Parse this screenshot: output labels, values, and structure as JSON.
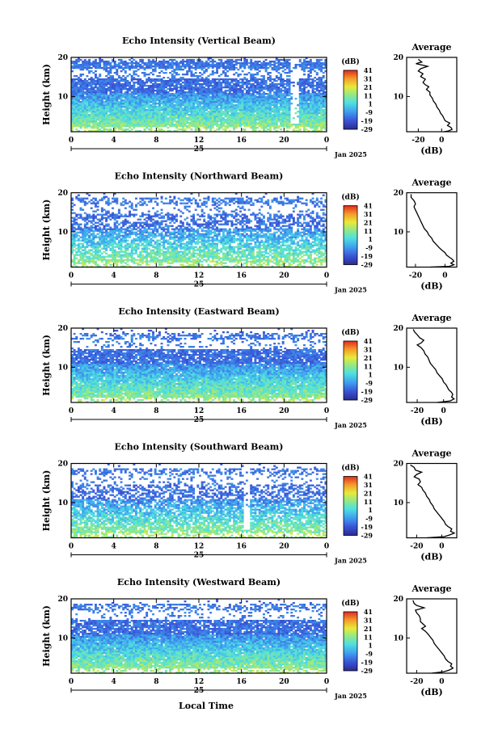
{
  "figure": {
    "x_axis_label": "Local Time",
    "date_label": "Jan 2025",
    "day_label": "25",
    "x_ticks": [
      "0",
      "4",
      "8",
      "12",
      "16",
      "20",
      "0"
    ],
    "y_ticks": [
      "20",
      "10"
    ],
    "y_label": "Height (km)",
    "colorbar": {
      "unit": "(dB)",
      "ticks": [
        "41",
        "31",
        "21",
        "11",
        "1",
        "-9",
        "-19",
        "-29"
      ]
    },
    "profile": {
      "title": "Average",
      "xlabel": "(dB)",
      "x_ticks": [
        "-20",
        "0"
      ],
      "y_ticks": [
        "20",
        "10"
      ]
    }
  },
  "panels": [
    {
      "title": "Echo Intensity (Vertical Beam)"
    },
    {
      "title": "Echo Intensity (Northward Beam)"
    },
    {
      "title": "Echo Intensity (Eastward Beam)"
    },
    {
      "title": "Echo Intensity (Southward Beam)"
    },
    {
      "title": "Echo Intensity (Westward Beam)"
    }
  ],
  "chart_data": [
    {
      "type": "heatmap",
      "title": "Echo Intensity (Vertical Beam)",
      "xlabel": "",
      "ylabel": "Height (km)",
      "x_range_hours": [
        0,
        24
      ],
      "y_range_km": [
        1,
        20
      ],
      "colorbar_range_db": [
        -29,
        41
      ],
      "profile": {
        "type": "line",
        "title": "Average",
        "xlabel": "(dB)",
        "ylabel": "",
        "xlim": [
          -30,
          13
        ],
        "ylim": [
          1,
          20
        ],
        "points": [
          [
            -20,
            19.5
          ],
          [
            -17,
            18.8
          ],
          [
            -22,
            18.4
          ],
          [
            -12,
            17.7
          ],
          [
            -18,
            17.1
          ],
          [
            -20,
            16.5
          ],
          [
            -16,
            15.8
          ],
          [
            -18,
            15.1
          ],
          [
            -14,
            14.4
          ],
          [
            -16,
            13.6
          ],
          [
            -14,
            13
          ],
          [
            -11,
            12.5
          ],
          [
            -13,
            11.8
          ],
          [
            -10,
            11.1
          ],
          [
            -10,
            10.4
          ],
          [
            -8,
            9.6
          ],
          [
            -7,
            8.8
          ],
          [
            -5,
            8.1
          ],
          [
            -4,
            7.3
          ],
          [
            -2,
            6.5
          ],
          [
            -1,
            5.8
          ],
          [
            1,
            5
          ],
          [
            2,
            4.4
          ],
          [
            3,
            3.8
          ],
          [
            7,
            3.2
          ],
          [
            5,
            2.6
          ],
          [
            8,
            2.1
          ],
          [
            9,
            1.6
          ],
          [
            6,
            1.2
          ],
          [
            2,
            1
          ]
        ]
      }
    },
    {
      "type": "heatmap",
      "title": "Echo Intensity (Northward Beam)",
      "xlabel": "",
      "ylabel": "Height (km)",
      "x_range_hours": [
        0,
        24
      ],
      "y_range_km": [
        1,
        20
      ],
      "colorbar_range_db": [
        -29,
        41
      ],
      "profile": {
        "type": "line",
        "title": "Average",
        "xlabel": "(dB)",
        "ylabel": "",
        "xlim": [
          -26,
          8
        ],
        "ylim": [
          1,
          20
        ],
        "points": [
          [
            -23,
            19.6
          ],
          [
            -23,
            18.8
          ],
          [
            -21,
            18
          ],
          [
            -20,
            17.2
          ],
          [
            -21,
            16.4
          ],
          [
            -20,
            15.6
          ],
          [
            -19,
            14.8
          ],
          [
            -18,
            14
          ],
          [
            -17,
            13.2
          ],
          [
            -16,
            12.4
          ],
          [
            -15,
            11.6
          ],
          [
            -14,
            10.8
          ],
          [
            -12,
            10
          ],
          [
            -11,
            9.2
          ],
          [
            -9,
            8.4
          ],
          [
            -8,
            7.6
          ],
          [
            -6,
            6.8
          ],
          [
            -4,
            6
          ],
          [
            -2,
            5.3
          ],
          [
            0,
            4.7
          ],
          [
            1,
            4.1
          ],
          [
            3,
            3.5
          ],
          [
            5,
            3
          ],
          [
            6,
            2.5
          ],
          [
            4,
            2
          ],
          [
            6,
            1.6
          ],
          [
            3,
            1.2
          ],
          [
            -10,
            1
          ]
        ]
      }
    },
    {
      "type": "heatmap",
      "title": "Echo Intensity (Eastward Beam)",
      "xlabel": "",
      "ylabel": "Height (km)",
      "x_range_hours": [
        0,
        24
      ],
      "y_range_km": [
        1,
        20
      ],
      "colorbar_range_db": [
        -29,
        41
      ],
      "profile": {
        "type": "line",
        "title": "Average",
        "xlabel": "(dB)",
        "ylabel": "",
        "xlim": [
          -28,
          10
        ],
        "ylim": [
          1,
          20
        ],
        "points": [
          [
            -23,
            19.7
          ],
          [
            -22,
            19
          ],
          [
            -20,
            18.3
          ],
          [
            -18,
            17.5
          ],
          [
            -15,
            16.9
          ],
          [
            -17,
            16.2
          ],
          [
            -20,
            15.7
          ],
          [
            -17,
            15
          ],
          [
            -15,
            14.2
          ],
          [
            -14,
            13.4
          ],
          [
            -12,
            12.6
          ],
          [
            -11,
            11.8
          ],
          [
            -10,
            11
          ],
          [
            -8,
            10.2
          ],
          [
            -6,
            9.4
          ],
          [
            -5,
            8.6
          ],
          [
            -3,
            7.8
          ],
          [
            -1,
            7
          ],
          [
            0,
            6.2
          ],
          [
            2,
            5.5
          ],
          [
            3,
            4.8
          ],
          [
            4,
            4.2
          ],
          [
            6,
            3.6
          ],
          [
            7,
            3
          ],
          [
            6,
            2.4
          ],
          [
            8,
            1.9
          ],
          [
            5,
            1.4
          ],
          [
            -5,
            1
          ]
        ]
      }
    },
    {
      "type": "heatmap",
      "title": "Echo Intensity (Southward Beam)",
      "xlabel": "",
      "ylabel": "Height (km)",
      "x_range_hours": [
        0,
        24
      ],
      "y_range_km": [
        1,
        20
      ],
      "colorbar_range_db": [
        -29,
        41
      ],
      "profile": {
        "type": "line",
        "title": "Average",
        "xlabel": "(dB)",
        "ylabel": "",
        "xlim": [
          -28,
          12
        ],
        "ylim": [
          1,
          20
        ],
        "points": [
          [
            -25,
            19.6
          ],
          [
            -22,
            19
          ],
          [
            -21,
            18.3
          ],
          [
            -16,
            17.8
          ],
          [
            -20,
            17.2
          ],
          [
            -22,
            16.6
          ],
          [
            -18,
            16
          ],
          [
            -17,
            15.3
          ],
          [
            -19,
            14.6
          ],
          [
            -16,
            13.9
          ],
          [
            -15,
            13.2
          ],
          [
            -13,
            12.4
          ],
          [
            -12,
            11.6
          ],
          [
            -10,
            10.8
          ],
          [
            -9,
            10
          ],
          [
            -7,
            9.2
          ],
          [
            -6,
            8.4
          ],
          [
            -4,
            7.6
          ],
          [
            -2,
            6.8
          ],
          [
            0,
            6
          ],
          [
            2,
            5.2
          ],
          [
            3,
            4.5
          ],
          [
            5,
            3.9
          ],
          [
            8,
            3.3
          ],
          [
            7,
            2.7
          ],
          [
            10,
            2.2
          ],
          [
            6,
            1.7
          ],
          [
            2,
            1.3
          ],
          [
            -12,
            1
          ]
        ]
      }
    },
    {
      "type": "heatmap",
      "title": "Echo Intensity (Westward Beam)",
      "xlabel": "Local Time",
      "ylabel": "Height (km)",
      "x_range_hours": [
        0,
        24
      ],
      "y_range_km": [
        1,
        20
      ],
      "colorbar_range_db": [
        -29,
        41
      ],
      "profile": {
        "type": "line",
        "title": "Average",
        "xlabel": "(dB)",
        "ylabel": "",
        "xlim": [
          -28,
          12
        ],
        "ylim": [
          1,
          20
        ],
        "points": [
          [
            -23,
            19.6
          ],
          [
            -22,
            18.8
          ],
          [
            -20,
            18.3
          ],
          [
            -14,
            17.7
          ],
          [
            -21,
            17.1
          ],
          [
            -20,
            16.4
          ],
          [
            -18,
            15.7
          ],
          [
            -17,
            14.9
          ],
          [
            -17,
            14.2
          ],
          [
            -15,
            13.6
          ],
          [
            -13,
            13
          ],
          [
            -16,
            12.4
          ],
          [
            -13,
            11.7
          ],
          [
            -11,
            11
          ],
          [
            -9,
            10.2
          ],
          [
            -7,
            9.4
          ],
          [
            -6,
            8.6
          ],
          [
            -4,
            7.8
          ],
          [
            -2,
            7
          ],
          [
            0,
            6.2
          ],
          [
            2,
            5.4
          ],
          [
            3,
            4.7
          ],
          [
            5,
            4
          ],
          [
            8,
            3.4
          ],
          [
            7,
            2.8
          ],
          [
            9,
            2.3
          ],
          [
            6,
            1.8
          ],
          [
            2,
            1.4
          ],
          [
            -8,
            1
          ]
        ]
      }
    }
  ]
}
